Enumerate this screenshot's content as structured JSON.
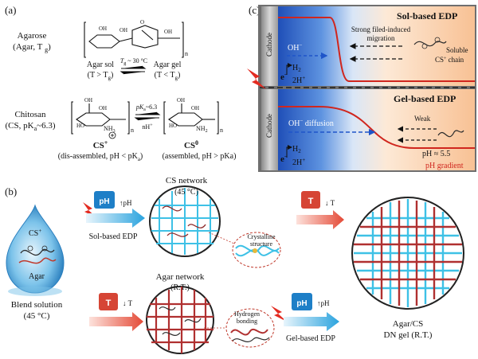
{
  "panel_a": {
    "label": "(a)",
    "agarose_name": "Agarose",
    "agarose_abbr": "(Agar, T",
    "agarose_abbr_sub": "g",
    "agarose_abbr_close": ")",
    "agar_sol": "Agar sol",
    "agar_sol_cond": "(T > T",
    "agar_gel": "Agar gel",
    "agar_gel_cond": "(T < T",
    "cond_sub": "g",
    "cond_close": ")",
    "tg_eq": "T",
    "tg_eq_rest": " ~ 30 °C",
    "chitosan_name": "Chitosan",
    "chitosan_abbr": "(CS, pK",
    "chitosan_abbr_sub": "a",
    "chitosan_abbr_rest": "~6.3)",
    "cs_plus": "CS",
    "cs_plus_sup": "+",
    "cs_plus_desc": "(dis-assembled, pH < pK",
    "cs_plus_desc_sub": "a",
    "cs_plus_desc_close": ")",
    "cs_zero": "CS",
    "cs_zero_sup": "0",
    "cs_zero_desc": "(assembled, pH > pKa)",
    "pka_eq": "pK",
    "pka_eq_rest": "~6.3",
    "nh_plus": "nH",
    "nh_plus_sup": "+",
    "repeat_n": "n",
    "oh": "OH",
    "o": "O",
    "ho": "HO",
    "nh3": "NH",
    "nh3_sub": "3",
    "nh2": "NH",
    "nh2_sub": "2"
  },
  "panel_b": {
    "label": "(b)",
    "cs_plus_label": "CS",
    "cs_plus_sup": "+",
    "agar_label": "Agar",
    "blend_title": "Blend solution",
    "blend_temp": "(45 °C)",
    "cs_network": "CS network",
    "cs_network_temp": "(45 °C)",
    "crystalline_1": "Crystalline",
    "crystalline_2": "structure",
    "sol_based_edp": "Sol-based EDP",
    "agar_network": "Agar network",
    "agar_network_temp": "(R.T.)",
    "hydrogen_1": "Hydrogen",
    "hydrogen_2": "bonding",
    "gel_based_edp": "Gel-based EDP",
    "final_gel_1": "Agar/CS",
    "final_gel_2": "DN gel (R.T.)",
    "ph_badge": "pH",
    "t_badge": "T",
    "ph_up": "pH",
    "t_down": "T"
  },
  "panel_c": {
    "label": "(c)",
    "top_title": "Sol-based EDP",
    "bottom_title": "Gel-based EDP",
    "cathode": "Cathode",
    "ohm": "OH",
    "ohm_sup": "−",
    "oh_diffusion": "OH",
    "oh_diffusion_rest": " diffusion",
    "h2": "H",
    "h2_sub": "2",
    "twoh": "2H",
    "twoh_sup": "+",
    "electron": "e",
    "electron_sup": "−",
    "strong_1": "Strong filed-induced",
    "strong_2": "migration",
    "soluble_1": "Soluble",
    "soluble_2": "CS",
    "soluble_2_sup": "+",
    "soluble_2_rest": " chain",
    "weak": "Weak",
    "ph_value": "pH ≈ 5.5",
    "ph_gradient": "pH gradient"
  },
  "colors": {
    "cs_chain": "#3ec1e6",
    "agar_chain": "#c0392b",
    "ph_badge": "#1e7fc7",
    "t_badge": "#d64535",
    "gradient_blue": "#2a62c9",
    "gradient_orange": "#f7c69b"
  }
}
